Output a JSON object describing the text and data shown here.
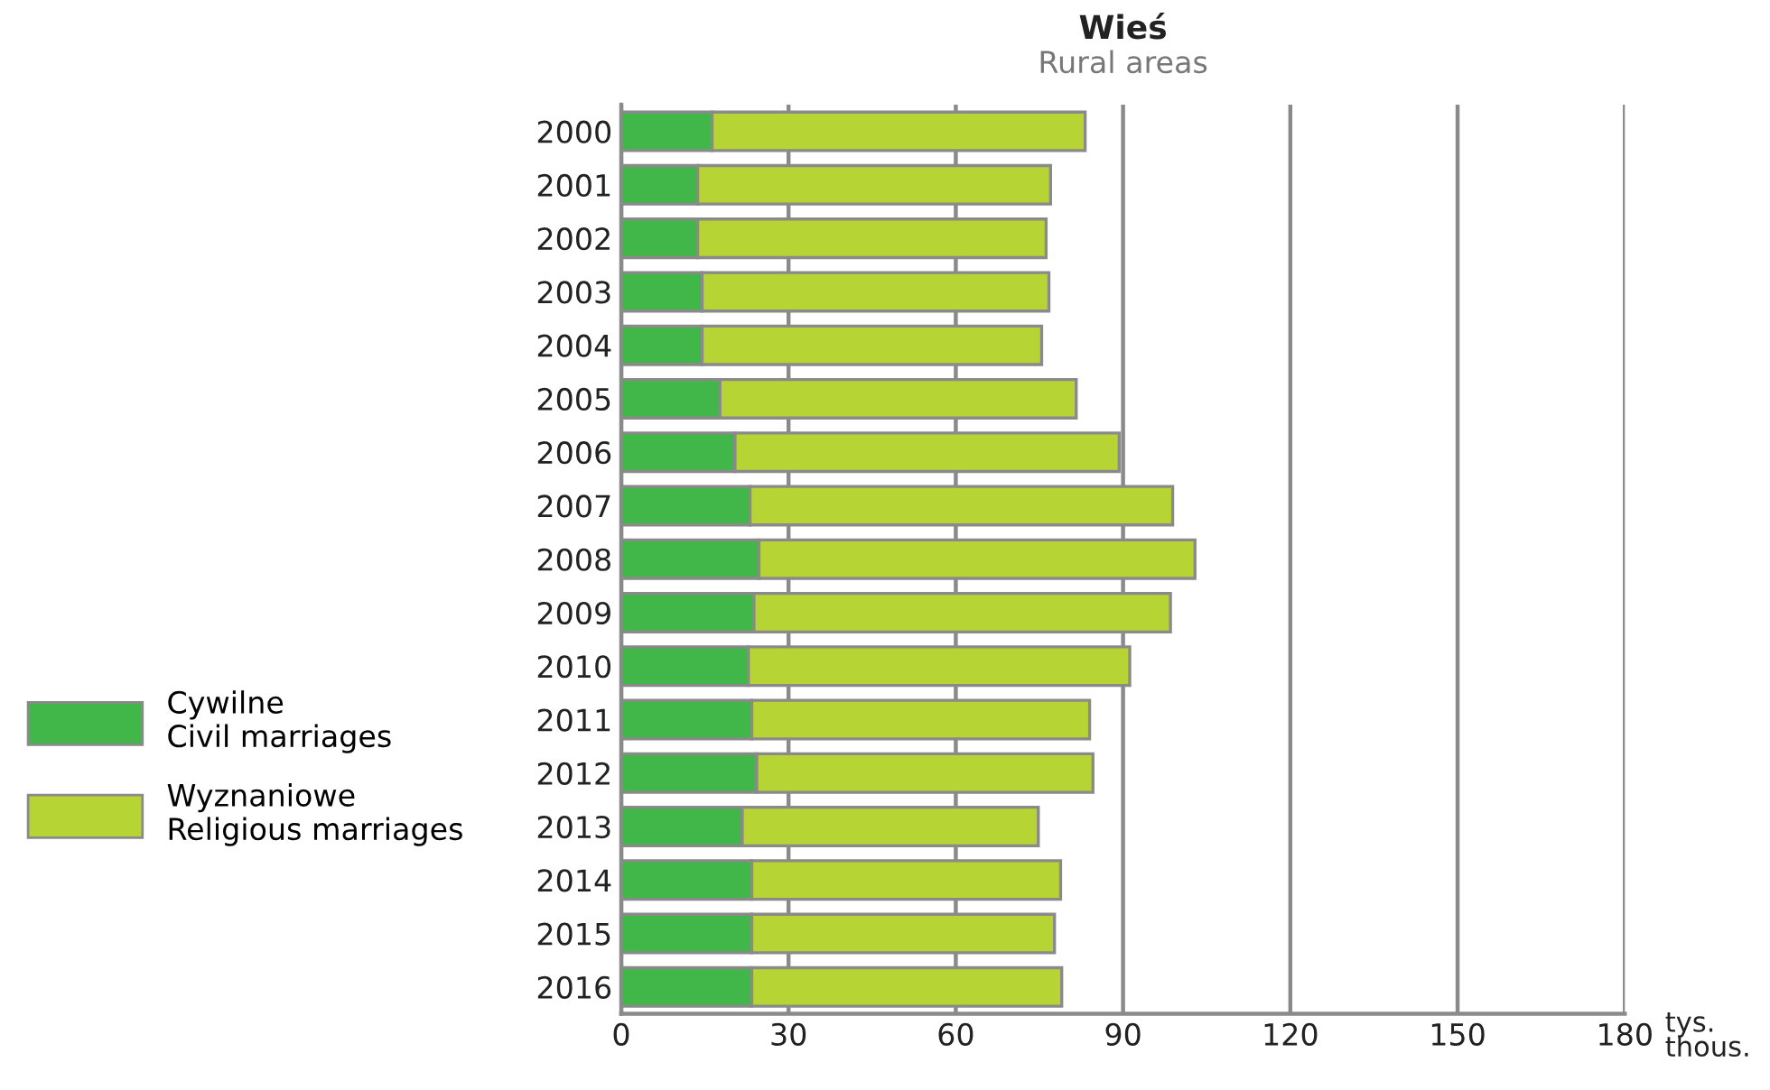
{
  "chart_data": {
    "type": "bar",
    "orientation": "horizontal",
    "stacked": true,
    "title": "Wieś",
    "subtitle": "Rural areas",
    "xlabel": "tys.\nthous.",
    "categories": [
      "2000",
      "2001",
      "2002",
      "2003",
      "2004",
      "2005",
      "2006",
      "2007",
      "2008",
      "2009",
      "2010",
      "2011",
      "2012",
      "2013",
      "2014",
      "2015",
      "2016"
    ],
    "series": [
      {
        "name": "Cywilne\nCivil marriages",
        "color": "#41b649",
        "values": [
          16.3,
          13.7,
          13.7,
          14.5,
          14.5,
          17.7,
          20.4,
          23.1,
          24.7,
          23.8,
          22.8,
          23.4,
          24.3,
          21.7,
          23.4,
          23.4,
          23.4
        ]
      },
      {
        "name": "Wyznaniowe\nReligious marriages",
        "color": "#b6d433",
        "values": [
          66.9,
          63.3,
          62.5,
          62.2,
          60.9,
          63.9,
          68.9,
          75.8,
          78.2,
          74.7,
          68.4,
          60.6,
          60.3,
          53.1,
          55.4,
          54.3,
          55.6
        ]
      }
    ],
    "xlim": [
      0,
      180
    ],
    "xticks": [
      0,
      30,
      60,
      90,
      120,
      150,
      180
    ],
    "grid": "x",
    "legend": "left"
  }
}
